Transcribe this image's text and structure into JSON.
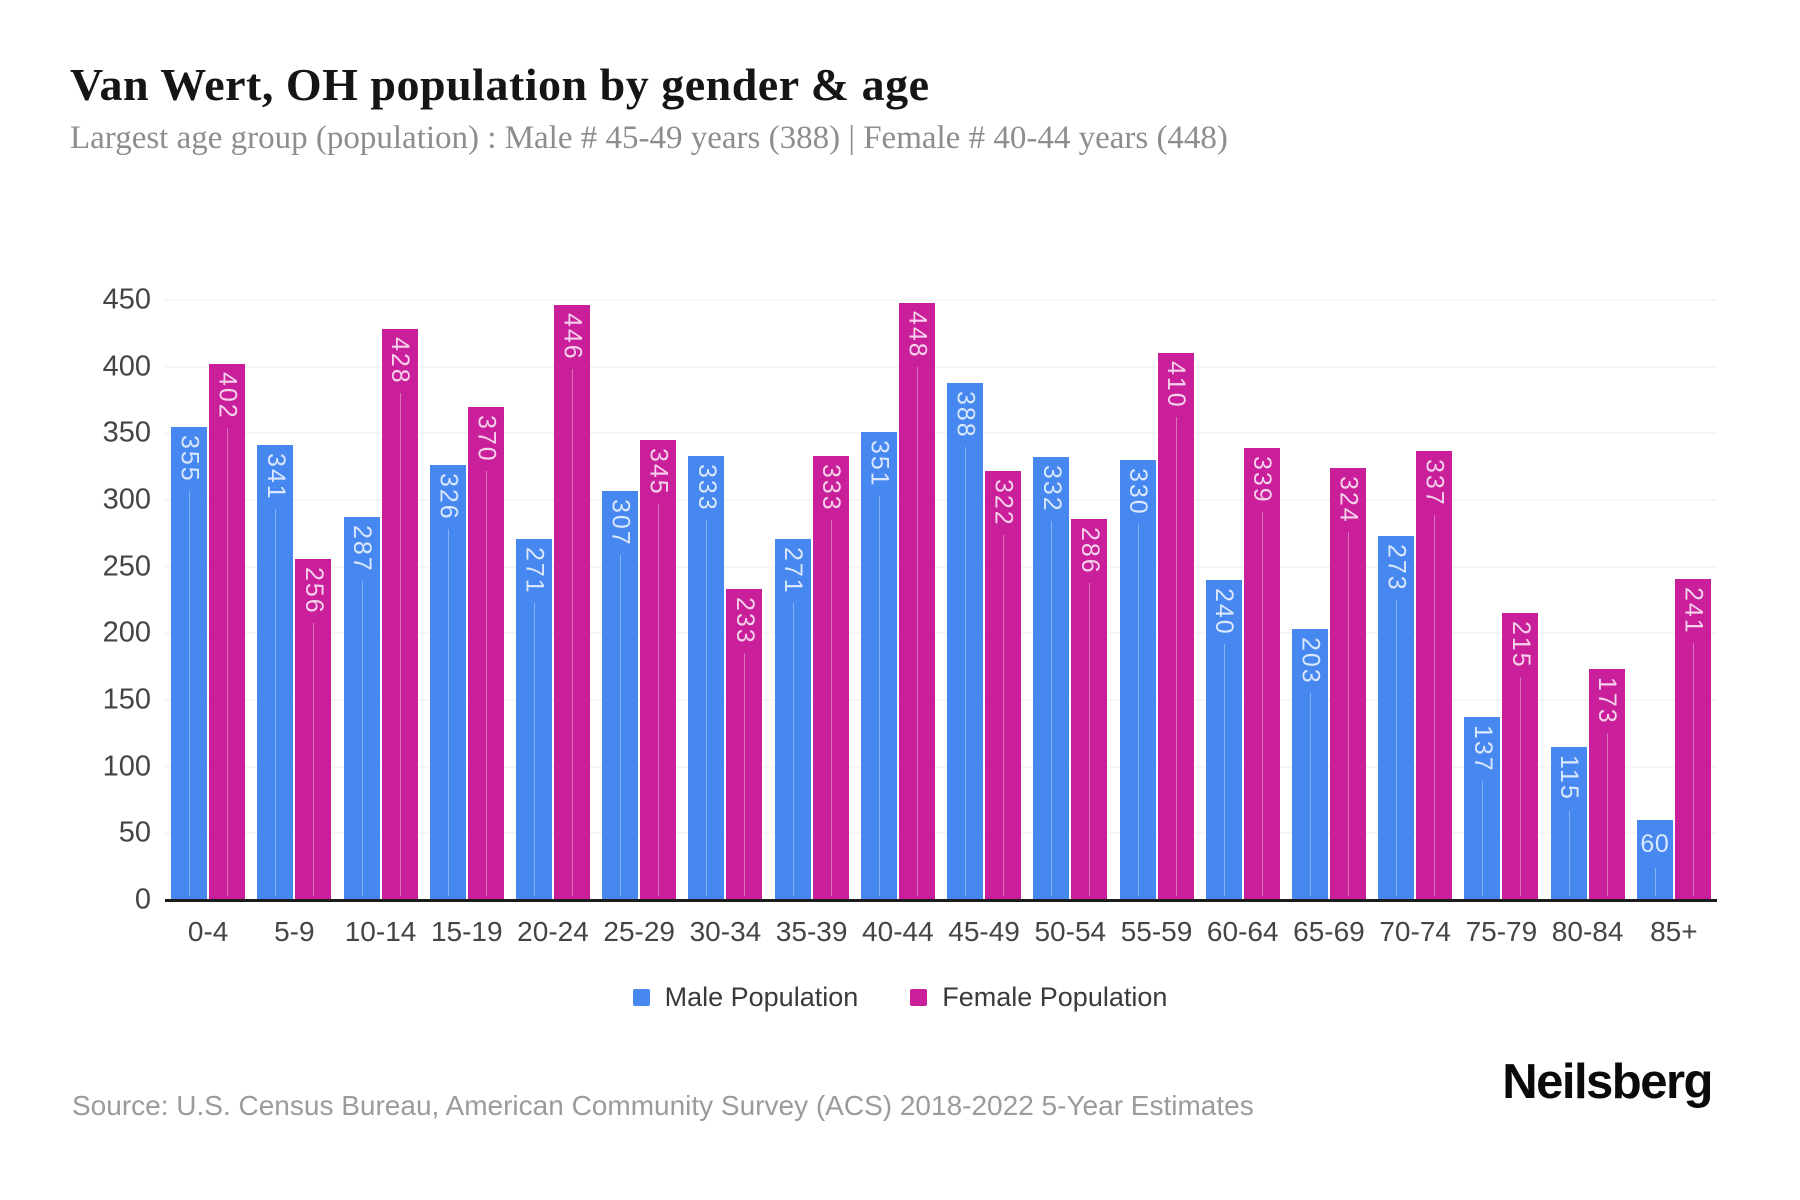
{
  "header": {
    "title": "Van Wert, OH population by gender & age",
    "subtitle": "Largest age group (population) : Male # 45-49 years (388) | Female # 40-44 years (448)"
  },
  "chart_data": {
    "type": "bar",
    "title": "Van Wert, OH population by gender & age",
    "categories": [
      "0-4",
      "5-9",
      "10-14",
      "15-19",
      "20-24",
      "25-29",
      "30-34",
      "35-39",
      "40-44",
      "45-49",
      "50-54",
      "55-59",
      "60-64",
      "65-69",
      "70-74",
      "75-79",
      "80-84",
      "85+"
    ],
    "series": [
      {
        "name": "Male Population",
        "color": "#4687f0",
        "values": [
          355,
          341,
          287,
          326,
          271,
          307,
          333,
          271,
          351,
          388,
          332,
          330,
          240,
          203,
          273,
          137,
          115,
          60
        ]
      },
      {
        "name": "Female Population",
        "color": "#ca1f9a",
        "values": [
          402,
          256,
          428,
          370,
          446,
          345,
          233,
          333,
          448,
          322,
          286,
          410,
          339,
          324,
          337,
          215,
          173,
          241
        ]
      }
    ],
    "xlabel": "",
    "ylabel": "",
    "ylim": [
      0,
      450
    ],
    "yticks": [
      0,
      50,
      100,
      150,
      200,
      250,
      300,
      350,
      400,
      450
    ],
    "grid": true,
    "legend_position": "bottom",
    "bar_value_labels": true
  },
  "legend": {
    "items": [
      {
        "label": "Male Population",
        "color": "#4687f0"
      },
      {
        "label": "Female Population",
        "color": "#ca1f9a"
      }
    ]
  },
  "footer": {
    "source": "Source: U.S. Census Bureau, American Community Survey (ACS) 2018-2022 5-Year Estimates",
    "logo": "Neilsberg"
  }
}
